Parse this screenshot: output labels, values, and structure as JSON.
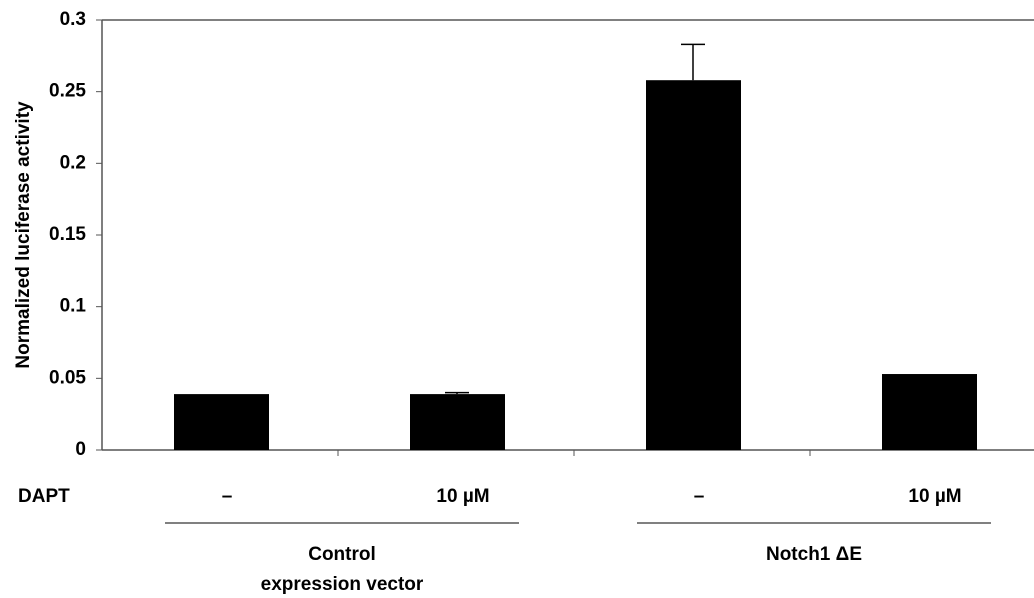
{
  "chart_data": {
    "type": "bar",
    "y_label": "Normalized luciferase activity",
    "row_label": "DAPT",
    "categories": [
      "–",
      "10 µM",
      "–",
      "10 µM"
    ],
    "groups": [
      [
        "Control",
        "expression vector"
      ],
      [
        "Notch1 ΔE"
      ]
    ],
    "values": [
      0.039,
      0.039,
      0.258,
      0.053
    ],
    "errors": [
      null,
      0.001,
      0.025,
      null
    ],
    "color": "#000000",
    "ylim": [
      0,
      0.3
    ],
    "yticks": [
      0,
      0.05,
      0.1,
      0.15,
      0.2,
      0.25,
      0.3
    ]
  }
}
